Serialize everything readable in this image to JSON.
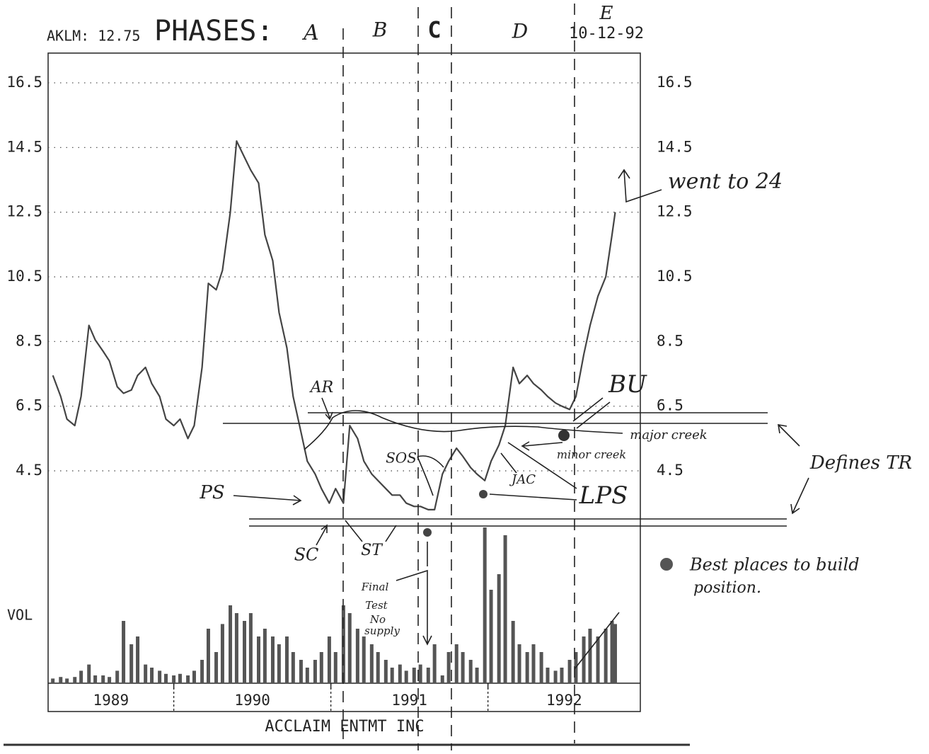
{
  "chart_data": {
    "type": "line",
    "header": "AKLM: 12.75",
    "title": "ACCLAIM ENTMT INC",
    "ylim": [
      2.75,
      17.42
    ],
    "yticks": [
      4.5,
      6.5,
      8.5,
      10.5,
      12.5,
      14.5,
      16.5
    ],
    "grid": true,
    "xlim": [
      1989.2,
      1992.97
    ],
    "x_boundaries": [
      1990,
      1991,
      1992
    ],
    "year_labels": [
      "1989",
      "1990",
      "1991",
      "1992"
    ],
    "x": [
      1989.23,
      1989.28,
      1989.32,
      1989.37,
      1989.41,
      1989.46,
      1989.5,
      1989.55,
      1989.59,
      1989.64,
      1989.68,
      1989.73,
      1989.77,
      1989.82,
      1989.86,
      1989.91,
      1989.95,
      1990.0,
      1990.04,
      1990.09,
      1990.13,
      1990.18,
      1990.22,
      1990.27,
      1990.31,
      1990.36,
      1990.4,
      1990.45,
      1990.49,
      1990.54,
      1990.58,
      1990.63,
      1990.67,
      1990.72,
      1990.76,
      1990.81,
      1990.85,
      1990.9,
      1990.94,
      1990.99,
      1991.03,
      1991.08,
      1991.12,
      1991.17,
      1991.21,
      1991.26,
      1991.3,
      1991.35,
      1991.39,
      1991.44,
      1991.48,
      1991.53,
      1991.57,
      1991.62,
      1991.66,
      1991.71,
      1991.75,
      1991.8,
      1991.84,
      1991.89,
      1991.93,
      1991.98,
      1992.02,
      1992.07,
      1992.11,
      1992.16,
      1992.2,
      1992.25,
      1992.29,
      1992.34,
      1992.38,
      1992.43,
      1992.47,
      1992.52,
      1992.56,
      1992.61,
      1992.65,
      1992.7,
      1992.75,
      1992.79,
      1992.81
    ],
    "series": [
      {
        "color": "#444",
        "values": [
          7.45,
          6.8,
          6.1,
          5.9,
          6.8,
          9.0,
          8.55,
          8.2,
          7.9,
          7.1,
          6.9,
          7.0,
          7.45,
          7.7,
          7.2,
          6.8,
          6.1,
          5.9,
          6.1,
          5.5,
          5.9,
          7.7,
          10.3,
          10.1,
          10.7,
          12.5,
          14.7,
          14.2,
          13.8,
          13.4,
          11.8,
          11.0,
          9.4,
          8.3,
          6.8,
          5.7,
          4.8,
          4.4,
          3.95,
          3.5,
          3.95,
          3.5,
          5.9,
          5.5,
          4.8,
          4.4,
          4.2,
          3.95,
          3.75,
          3.75,
          3.5,
          3.4,
          3.4,
          3.3,
          3.3,
          4.4,
          4.8,
          5.2,
          4.95,
          4.6,
          4.4,
          4.2,
          4.8,
          5.3,
          5.9,
          7.7,
          7.2,
          7.45,
          7.2,
          7.0,
          6.8,
          6.6,
          6.5,
          6.4,
          6.8,
          8.1,
          9.0,
          9.9,
          10.5,
          11.8,
          12.5
        ]
      }
    ],
    "volume": {
      "label": "VOL",
      "color": "#555",
      "ylim": [
        0,
        100
      ],
      "values": [
        3,
        4,
        3,
        4,
        8,
        12,
        5,
        5,
        4,
        8,
        40,
        25,
        30,
        12,
        10,
        8,
        6,
        5,
        6,
        5,
        8,
        15,
        35,
        20,
        38,
        50,
        45,
        40,
        45,
        30,
        35,
        30,
        25,
        30,
        20,
        15,
        10,
        15,
        20,
        30,
        20,
        50,
        45,
        35,
        30,
        25,
        20,
        15,
        10,
        12,
        8,
        10,
        12,
        10,
        25,
        5,
        20,
        25,
        20,
        15,
        10,
        100,
        60,
        70,
        95,
        40,
        25,
        20,
        25,
        20,
        10,
        8,
        10,
        15,
        20,
        30,
        35,
        30,
        35,
        40,
        38
      ]
    }
  },
  "annotations": {
    "phases_title": "PHASES:",
    "phases": [
      "A",
      "B",
      "C",
      "D",
      "E"
    ],
    "date": "10-12-92",
    "went": "went to 24",
    "bu": "BU",
    "major": "major creek",
    "minor": "minor creek",
    "defines": "Defines TR",
    "lps": "LPS",
    "jac": "JAC",
    "sos": "SOS",
    "ar": "AR",
    "ps": "PS",
    "sc": "SC",
    "st": "ST",
    "final_test": [
      "Final",
      "Test",
      "No",
      "supply"
    ],
    "best": [
      "Best places to build",
      "position."
    ]
  }
}
